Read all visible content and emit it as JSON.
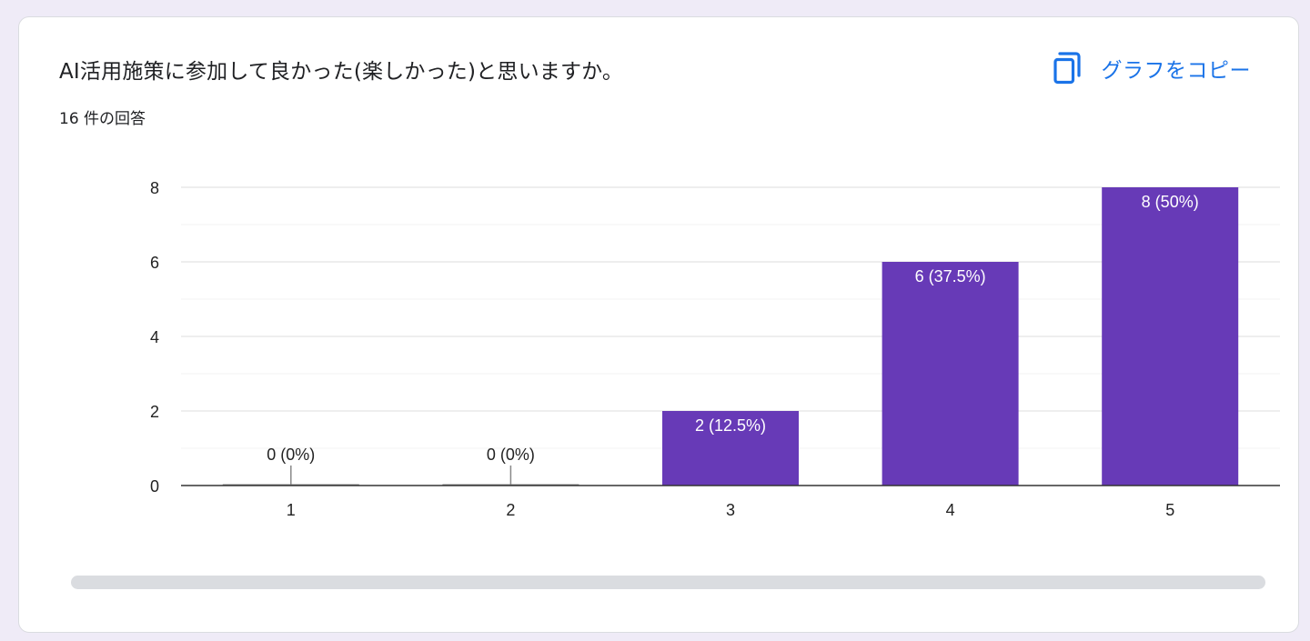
{
  "question": {
    "title": "AI活用施策に参加して良かった(楽しかった)と思いますか。",
    "response_count": "16 件の回答"
  },
  "toolbar": {
    "copy_label": "グラフをコピー",
    "copy_icon": "copy-icon"
  },
  "colors": {
    "bar": "#673ab7",
    "accent": "#1a73e8",
    "gridline": "#e8e8e8",
    "axis": "#333333"
  },
  "chart_data": {
    "type": "bar",
    "categories": [
      "1",
      "2",
      "3",
      "4",
      "5"
    ],
    "values": [
      0,
      0,
      2,
      6,
      8
    ],
    "data_labels": [
      "0 (0%)",
      "0 (0%)",
      "2 (12.5%)",
      "6 (37.5%)",
      "8 (50%)"
    ],
    "title": "",
    "xlabel": "",
    "ylabel": "",
    "ylim": [
      0,
      8
    ],
    "yticks": [
      0,
      2,
      4,
      6,
      8
    ],
    "minor_gridlines": [
      1,
      3,
      5,
      7
    ],
    "grid": true,
    "legend": "none"
  }
}
